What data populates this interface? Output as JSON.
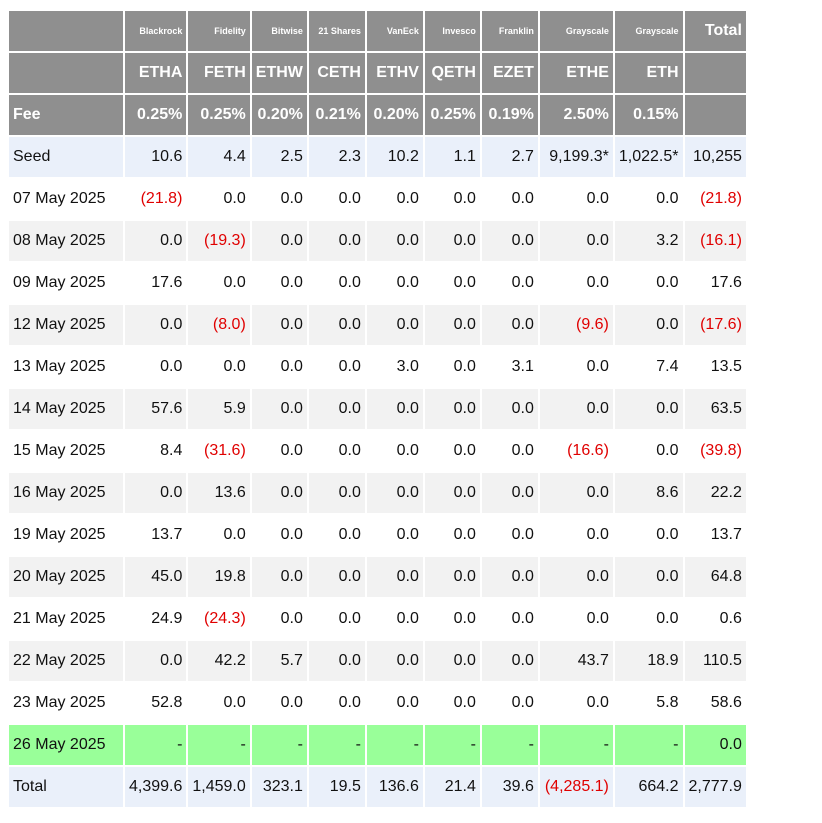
{
  "issuers": [
    "",
    "Blackrock",
    "Fidelity",
    "Bitwise",
    "21 Shares",
    "VanEck",
    "Invesco",
    "Franklin",
    "Grayscale",
    "Grayscale",
    "Total"
  ],
  "tickers": [
    "",
    "ETHA",
    "FETH",
    "ETHW",
    "CETH",
    "ETHV",
    "QETH",
    "EZET",
    "ETHE",
    "ETH",
    ""
  ],
  "fees": [
    "Fee",
    "0.25%",
    "0.25%",
    "0.20%",
    "0.21%",
    "0.20%",
    "0.25%",
    "0.19%",
    "2.50%",
    "0.15%",
    ""
  ],
  "rows": [
    {
      "style": "seed",
      "cells": [
        "Seed",
        "10.6",
        "4.4",
        "2.5",
        "2.3",
        "10.2",
        "1.1",
        "2.7",
        "9,199.3*",
        "1,022.5*",
        "10,255"
      ]
    },
    {
      "style": "odd",
      "cells": [
        "07 May 2025",
        "(21.8)",
        "0.0",
        "0.0",
        "0.0",
        "0.0",
        "0.0",
        "0.0",
        "0.0",
        "0.0",
        "(21.8)"
      ]
    },
    {
      "style": "even",
      "cells": [
        "08 May 2025",
        "0.0",
        "(19.3)",
        "0.0",
        "0.0",
        "0.0",
        "0.0",
        "0.0",
        "0.0",
        "3.2",
        "(16.1)"
      ]
    },
    {
      "style": "odd",
      "cells": [
        "09 May 2025",
        "17.6",
        "0.0",
        "0.0",
        "0.0",
        "0.0",
        "0.0",
        "0.0",
        "0.0",
        "0.0",
        "17.6"
      ]
    },
    {
      "style": "even",
      "cells": [
        "12 May 2025",
        "0.0",
        "(8.0)",
        "0.0",
        "0.0",
        "0.0",
        "0.0",
        "0.0",
        "(9.6)",
        "0.0",
        "(17.6)"
      ]
    },
    {
      "style": "odd",
      "cells": [
        "13 May 2025",
        "0.0",
        "0.0",
        "0.0",
        "0.0",
        "3.0",
        "0.0",
        "3.1",
        "0.0",
        "7.4",
        "13.5"
      ]
    },
    {
      "style": "even",
      "cells": [
        "14 May 2025",
        "57.6",
        "5.9",
        "0.0",
        "0.0",
        "0.0",
        "0.0",
        "0.0",
        "0.0",
        "0.0",
        "63.5"
      ]
    },
    {
      "style": "odd",
      "cells": [
        "15 May 2025",
        "8.4",
        "(31.6)",
        "0.0",
        "0.0",
        "0.0",
        "0.0",
        "0.0",
        "(16.6)",
        "0.0",
        "(39.8)"
      ]
    },
    {
      "style": "even",
      "cells": [
        "16 May 2025",
        "0.0",
        "13.6",
        "0.0",
        "0.0",
        "0.0",
        "0.0",
        "0.0",
        "0.0",
        "8.6",
        "22.2"
      ]
    },
    {
      "style": "odd",
      "cells": [
        "19 May 2025",
        "13.7",
        "0.0",
        "0.0",
        "0.0",
        "0.0",
        "0.0",
        "0.0",
        "0.0",
        "0.0",
        "13.7"
      ]
    },
    {
      "style": "even",
      "cells": [
        "20 May 2025",
        "45.0",
        "19.8",
        "0.0",
        "0.0",
        "0.0",
        "0.0",
        "0.0",
        "0.0",
        "0.0",
        "64.8"
      ]
    },
    {
      "style": "odd",
      "cells": [
        "21 May 2025",
        "24.9",
        "(24.3)",
        "0.0",
        "0.0",
        "0.0",
        "0.0",
        "0.0",
        "0.0",
        "0.0",
        "0.6"
      ]
    },
    {
      "style": "even",
      "cells": [
        "22 May 2025",
        "0.0",
        "42.2",
        "5.7",
        "0.0",
        "0.0",
        "0.0",
        "0.0",
        "43.7",
        "18.9",
        "110.5"
      ]
    },
    {
      "style": "odd",
      "cells": [
        "23 May 2025",
        "52.8",
        "0.0",
        "0.0",
        "0.0",
        "0.0",
        "0.0",
        "0.0",
        "0.0",
        "5.8",
        "58.6"
      ]
    },
    {
      "style": "green",
      "cells": [
        "26 May 2025",
        "-",
        "-",
        "-",
        "-",
        "-",
        "-",
        "-",
        "-",
        "-",
        "0.0"
      ]
    },
    {
      "style": "total",
      "cells": [
        "Total",
        "4,399.6",
        "1,459.0",
        "323.1",
        "19.5",
        "136.6",
        "21.4",
        "39.6",
        "(4,285.1)",
        "664.2",
        "2,777.9"
      ]
    }
  ]
}
